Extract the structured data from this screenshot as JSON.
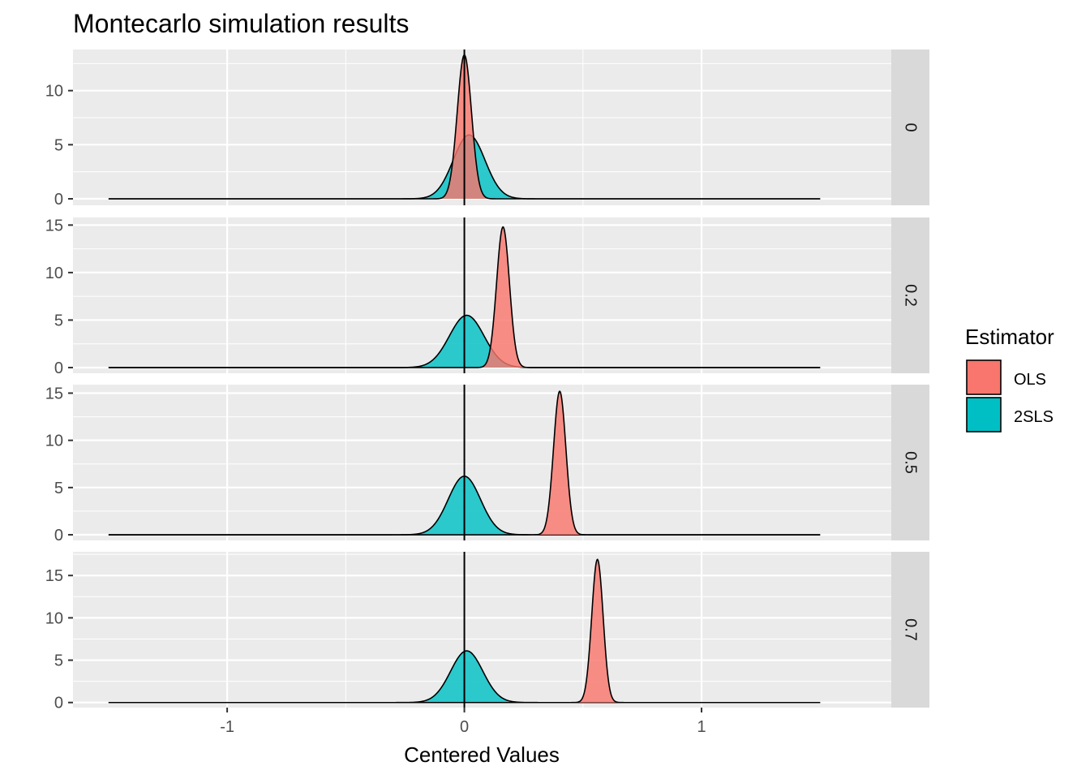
{
  "chart_data": {
    "type": "area",
    "title": "Montecarlo simulation results",
    "xlabel": "Centered Values",
    "ylabel": "",
    "xlim": [
      -1.65,
      1.8
    ],
    "x_ticks": [
      -1,
      0,
      1
    ],
    "x_tick_labels": [
      "-1",
      "0",
      "1"
    ],
    "vline_x": 0,
    "grid": true,
    "legend": {
      "title": "Estimator",
      "placement": "right",
      "entries": [
        {
          "name": "OLS",
          "color": "#f8766d"
        },
        {
          "name": "2SLS",
          "color": "#00bfc4"
        }
      ]
    },
    "support": [
      -1.5,
      1.5
    ],
    "facets": [
      {
        "label": "0",
        "ylim": [
          -0.6,
          13.8
        ],
        "y_ticks": [
          0,
          5,
          10
        ],
        "y_tick_labels": [
          "0",
          "5",
          "10"
        ],
        "series": [
          {
            "name": "OLS",
            "mean": 0.0,
            "sd": 0.03,
            "peak": 13.3
          },
          {
            "name": "2SLS",
            "mean": 0.02,
            "sd": 0.067,
            "peak": 5.9
          }
        ]
      },
      {
        "label": "0.2",
        "ylim": [
          -0.6,
          15.8
        ],
        "y_ticks": [
          0,
          5,
          10,
          15
        ],
        "y_tick_labels": [
          "0",
          "5",
          "10",
          "15"
        ],
        "series": [
          {
            "name": "OLS",
            "mean": 0.163,
            "sd": 0.027,
            "peak": 14.8
          },
          {
            "name": "2SLS",
            "mean": 0.01,
            "sd": 0.073,
            "peak": 5.5
          }
        ]
      },
      {
        "label": "0.5",
        "ylim": [
          -0.6,
          15.9
        ],
        "y_ticks": [
          0,
          5,
          10,
          15
        ],
        "y_tick_labels": [
          "0",
          "5",
          "10",
          "15"
        ],
        "series": [
          {
            "name": "OLS",
            "mean": 0.402,
            "sd": 0.026,
            "peak": 15.2
          },
          {
            "name": "2SLS",
            "mean": 0.0,
            "sd": 0.068,
            "peak": 6.2
          }
        ]
      },
      {
        "label": "0.7",
        "ylim": [
          -0.6,
          17.8
        ],
        "y_ticks": [
          0,
          5,
          10,
          15
        ],
        "y_tick_labels": [
          "0",
          "5",
          "10",
          "15"
        ],
        "series": [
          {
            "name": "OLS",
            "mean": 0.561,
            "sd": 0.024,
            "peak": 16.9
          },
          {
            "name": "2SLS",
            "mean": 0.01,
            "sd": 0.068,
            "peak": 6.1
          }
        ]
      }
    ]
  }
}
